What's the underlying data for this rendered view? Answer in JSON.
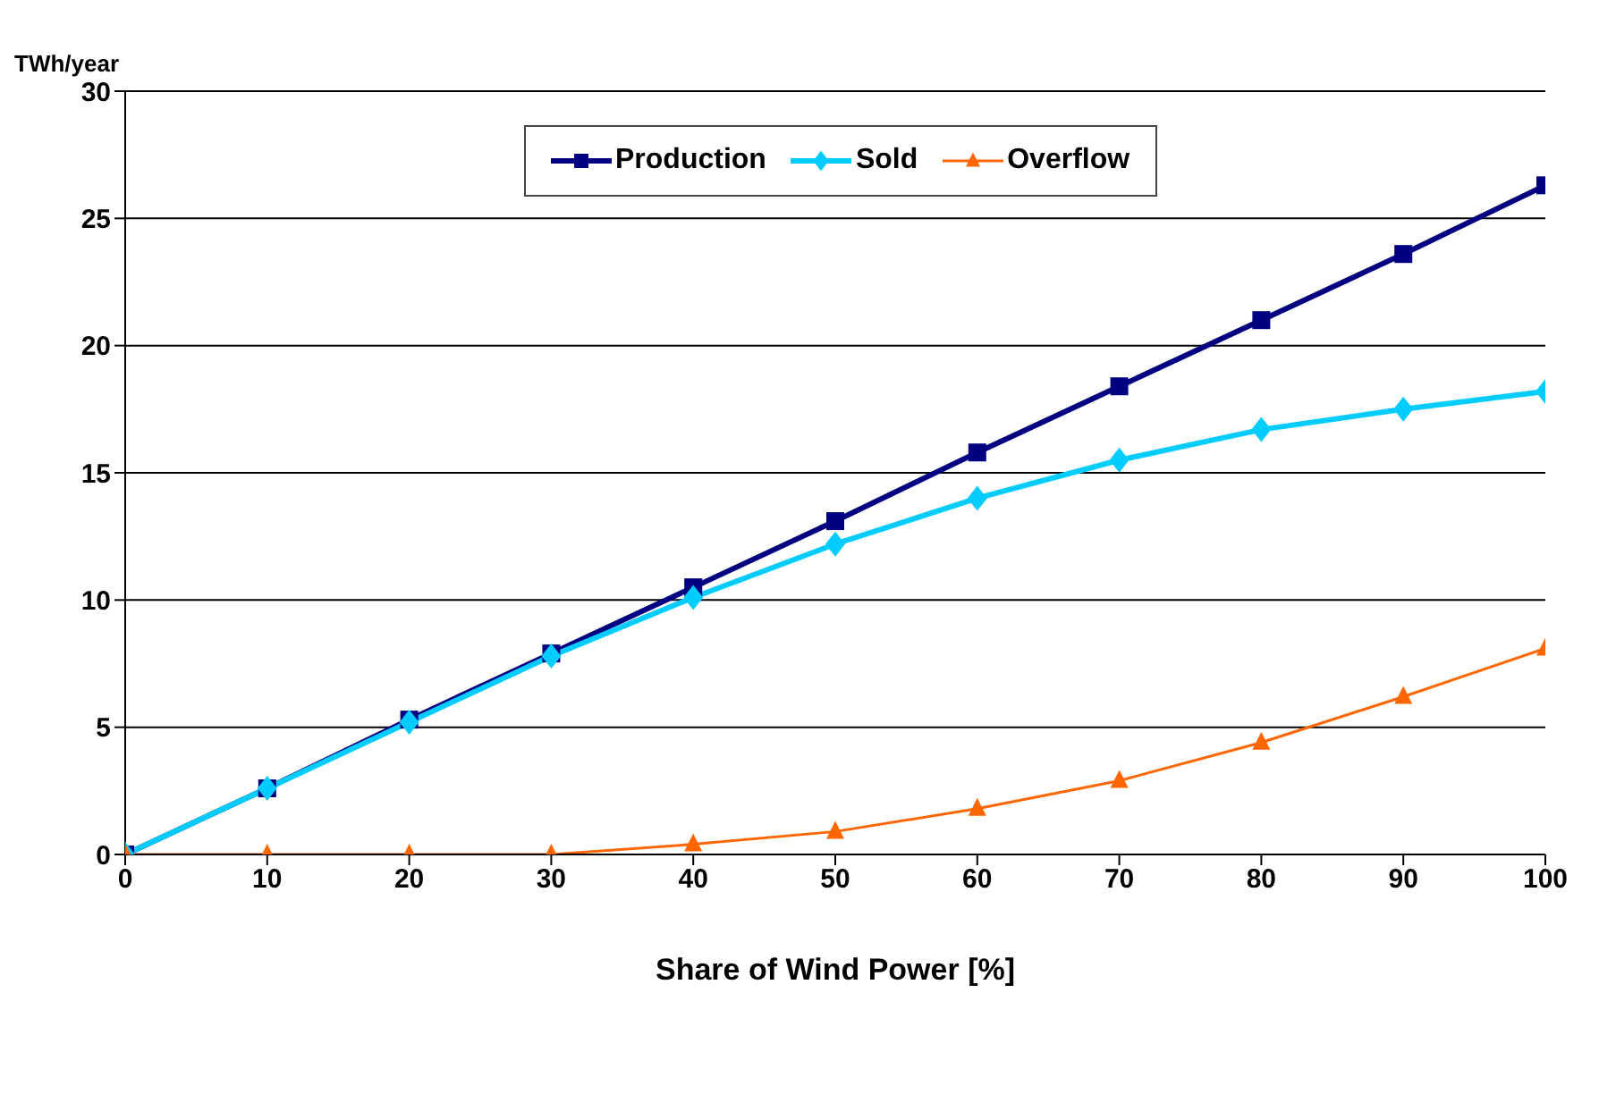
{
  "chart_data": {
    "type": "line",
    "xlabel": "Share of Wind Power [%]",
    "ylabel": "TWh/year",
    "x": [
      0,
      10,
      20,
      30,
      40,
      50,
      60,
      70,
      80,
      90,
      100
    ],
    "series": [
      {
        "name": "Production",
        "color": "#000080",
        "marker": "square",
        "values": [
          0,
          2.6,
          5.3,
          7.9,
          10.5,
          13.1,
          15.8,
          18.4,
          21.0,
          23.6,
          26.3
        ]
      },
      {
        "name": "Sold",
        "color": "#00ccff",
        "marker": "diamond",
        "values": [
          0,
          2.6,
          5.2,
          7.8,
          10.1,
          12.2,
          14.0,
          15.5,
          16.7,
          17.5,
          18.2
        ]
      },
      {
        "name": "Overflow",
        "color": "#ff6600",
        "marker": "triangle",
        "values": [
          0,
          0,
          0,
          0,
          0.4,
          0.9,
          1.8,
          2.9,
          4.4,
          6.2,
          8.1
        ]
      }
    ],
    "xlim": [
      0,
      100
    ],
    "xticks": [
      0,
      10,
      20,
      30,
      40,
      50,
      60,
      70,
      80,
      90,
      100
    ],
    "ylim": [
      0,
      30
    ],
    "yticks": [
      0,
      5,
      10,
      15,
      20,
      25,
      30
    ],
    "grid": "y",
    "legend": "top",
    "line_style": "solid"
  }
}
